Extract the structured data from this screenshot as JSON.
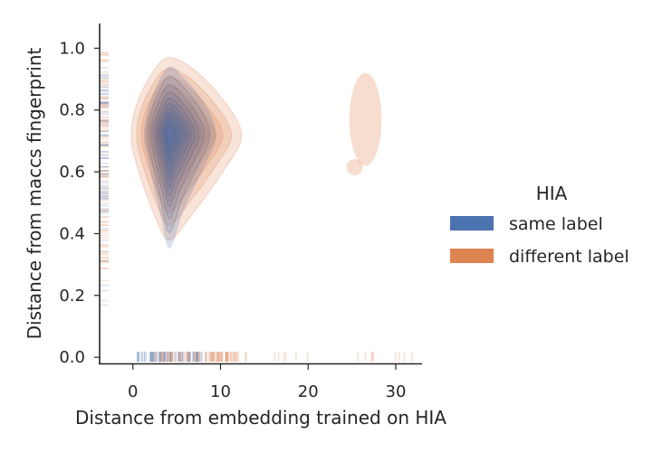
{
  "chart_data": {
    "type": "kde-density-with-rug",
    "xlabel": "Distance from embedding trained on HIA",
    "ylabel": "Distance from maccs fingerprint",
    "xlim": [
      -3.8,
      33
    ],
    "ylim": [
      -0.02,
      1.08
    ],
    "xticks": [
      0,
      10,
      20,
      30
    ],
    "yticks": [
      0.0,
      0.2,
      0.4,
      0.6,
      0.8,
      1.0
    ],
    "grid": false,
    "legend": {
      "title": "HIA",
      "placement": "right",
      "entries": [
        {
          "label": "same label",
          "color": "#4c72b0"
        },
        {
          "label": "different label",
          "color": "#dd8452"
        }
      ]
    },
    "series": [
      {
        "name": "same label",
        "color": "#4c72b0",
        "kde_center": [
          4.2,
          0.72
        ],
        "kde_extent_x": [
          1.0,
          10.5
        ],
        "kde_extent_y": [
          0.32,
          0.96
        ],
        "rug_x_range": [
          0.5,
          8
        ],
        "rug_y_range": [
          0.5,
          0.92
        ]
      },
      {
        "name": "different label",
        "color": "#dd8452",
        "kde_center": [
          4.0,
          0.72
        ],
        "kde_extent_x": [
          -0.5,
          12.3
        ],
        "kde_extent_y": [
          0.38,
          0.97
        ],
        "secondary_cluster": {
          "x": [
            24,
            28.5
          ],
          "y": [
            0.6,
            0.92
          ]
        },
        "rug_x_range": [
          2,
          12
        ],
        "rug_y_range": [
          0.3,
          1.0
        ]
      }
    ]
  }
}
